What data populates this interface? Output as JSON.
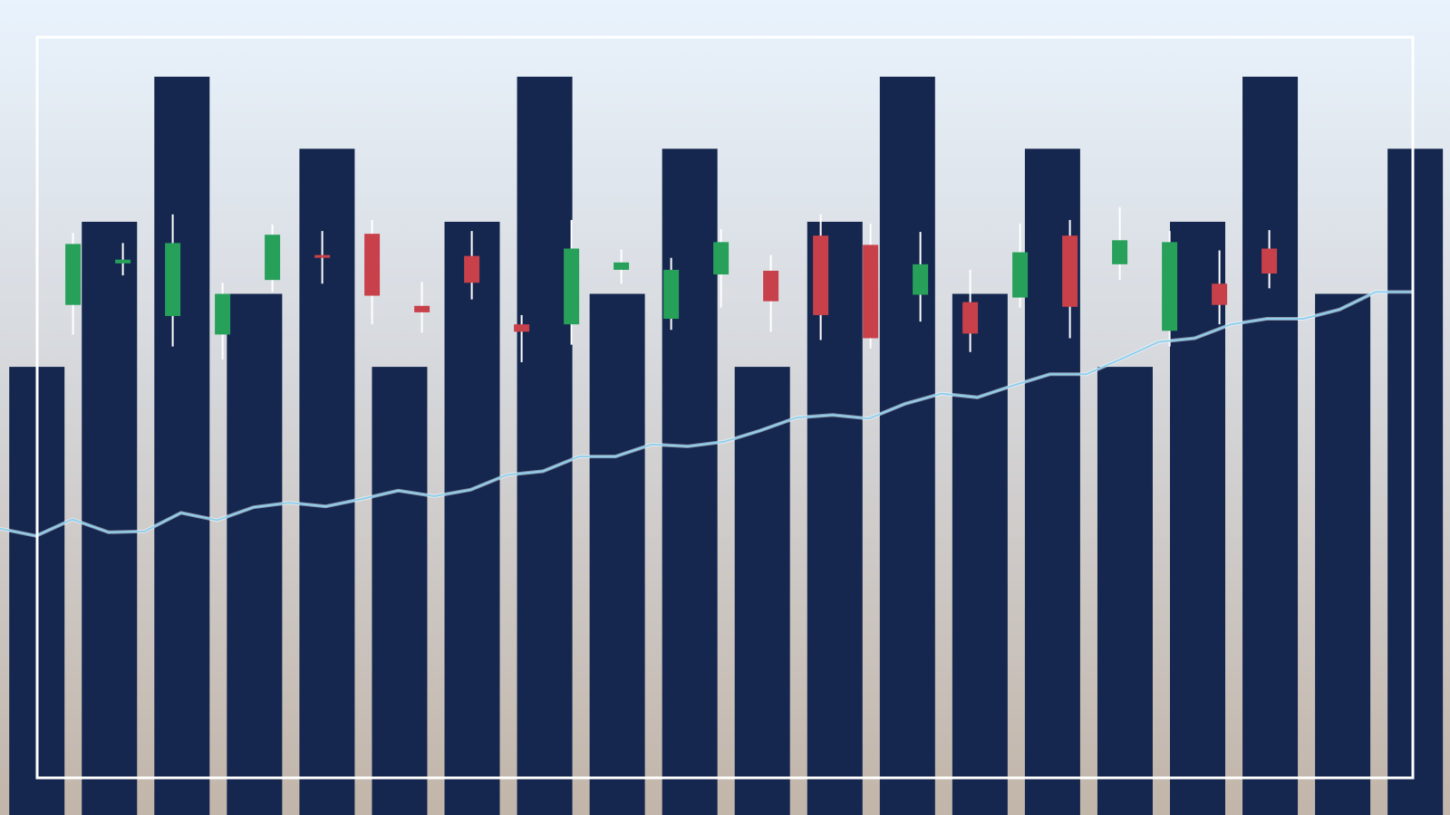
{
  "chart_data": [
    {
      "type": "bar",
      "color": "#15274f",
      "ylim": [
        0,
        882
      ],
      "values": [
        485,
        642,
        799,
        564,
        721,
        485,
        642,
        799,
        564,
        721,
        485,
        642,
        799,
        564,
        721,
        485,
        642,
        799,
        564,
        721
      ]
    },
    {
      "type": "candlestick",
      "up_color": "#27a05a",
      "down_color": "#c8404a",
      "wick_color": "#ffffff",
      "ylim": [
        0,
        882
      ],
      "open": [
        552,
        597,
        540,
        520,
        579,
        606,
        629,
        551,
        605,
        531,
        531,
        590,
        537,
        585,
        589,
        627,
        617,
        563,
        555,
        560,
        627,
        596,
        524,
        575,
        613
      ],
      "high": [
        630,
        619,
        650,
        576,
        639,
        632,
        644,
        577,
        632,
        541,
        644,
        612,
        603,
        634,
        606,
        650,
        640,
        631,
        590,
        640,
        644,
        658,
        632,
        611,
        633
      ],
      "low": [
        520,
        584,
        507,
        493,
        566,
        575,
        531,
        522,
        558,
        490,
        509,
        575,
        525,
        549,
        523,
        514,
        505,
        534,
        501,
        549,
        516,
        579,
        507,
        531,
        570
      ],
      "close": [
        618,
        601,
        619,
        564,
        628,
        603,
        562,
        544,
        576,
        523,
        613,
        598,
        590,
        620,
        556,
        541,
        516,
        596,
        521,
        609,
        550,
        622,
        620,
        552,
        586
      ]
    },
    {
      "type": "line",
      "color": "#8fd0ee",
      "ylim": [
        0,
        882
      ],
      "values": [
        310,
        302,
        320,
        306,
        307,
        327,
        319,
        333,
        338,
        334,
        342,
        351,
        345,
        352,
        368,
        372,
        388,
        388,
        401,
        399,
        404,
        416,
        430,
        433,
        429,
        445,
        456,
        452,
        465,
        477,
        477,
        494,
        512,
        516,
        531,
        537,
        537,
        547,
        566,
        566
      ]
    }
  ]
}
